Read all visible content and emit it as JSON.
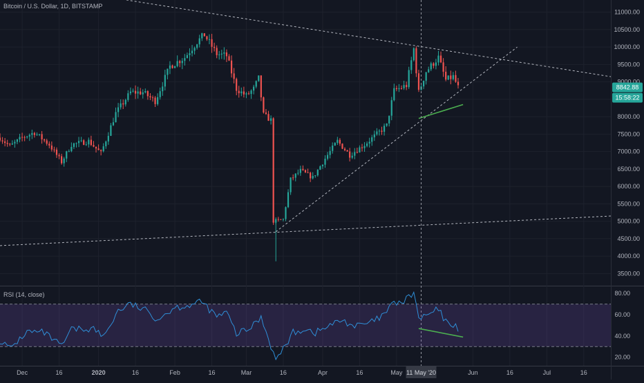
{
  "header": {
    "title": "Bitcoin / U.S. Dollar, 1D, BITSTAMP"
  },
  "rsi_panel": {
    "title": "RSI (14, close)"
  },
  "price_badge": {
    "price": "8842.88",
    "countdown": "15:58:22"
  },
  "crosshair": {
    "date_label": "11 May '20"
  },
  "colors": {
    "background": "#131722",
    "up": "#26a69a",
    "down": "#ef5350",
    "rsi_line": "#2f8fd8",
    "rsi_band": "#7e57c2",
    "trendline": "#d1d4dc",
    "divergence": "#4caf50",
    "badge_price": "#26a69a",
    "badge_time": "#26a69a"
  },
  "chart_data": [
    {
      "type": "candlestick",
      "title": "Bitcoin / U.S. Dollar, 1D, BITSTAMP",
      "y_ticks": [
        3500,
        4000,
        4500,
        5000,
        5500,
        6000,
        6500,
        7000,
        7500,
        8000,
        8500,
        9000,
        9500,
        10000,
        10500,
        11000
      ],
      "y_tick_labels": [
        "3500.00",
        "4000.00",
        "4500.00",
        "5000.00",
        "5500.00",
        "6000.00",
        "6500.00",
        "7000.00",
        "7500.00",
        "8000.00",
        "8500.00",
        "9000.00",
        "9500.00",
        "10000.00",
        "10500.00",
        "11000.00"
      ],
      "ylim": [
        3150,
        11350
      ],
      "x_tick_labels": [
        "Dec",
        "16",
        "2020",
        "16",
        "Feb",
        "16",
        "Mar",
        "16",
        "Apr",
        "16",
        "May",
        "Jun",
        "16",
        "Jul",
        "16"
      ],
      "x_tick_dates": [
        "2019-12-01",
        "2019-12-16",
        "2020-01-01",
        "2020-01-16",
        "2020-02-01",
        "2020-02-16",
        "2020-03-01",
        "2020-03-16",
        "2020-04-01",
        "2020-04-16",
        "2020-05-01",
        "2020-06-01",
        "2020-06-16",
        "2020-07-01",
        "2020-07-16"
      ],
      "x_range": [
        "2019-11-22",
        "2020-07-27"
      ],
      "last_price": 8842.88,
      "crosshair_date": "2020-05-11",
      "anchors": [
        [
          "2019-11-22",
          7400
        ],
        [
          "2019-11-26",
          7150
        ],
        [
          "2019-12-01",
          7400
        ],
        [
          "2019-12-06",
          7550
        ],
        [
          "2019-12-12",
          7200
        ],
        [
          "2019-12-17",
          6700
        ],
        [
          "2019-12-21",
          7200
        ],
        [
          "2019-12-28",
          7300
        ],
        [
          "2020-01-02",
          6950
        ],
        [
          "2020-01-08",
          8100
        ],
        [
          "2020-01-14",
          8700
        ],
        [
          "2020-01-19",
          8700
        ],
        [
          "2020-01-24",
          8450
        ],
        [
          "2020-01-30",
          9450
        ],
        [
          "2020-02-05",
          9700
        ],
        [
          "2020-02-10",
          10150
        ],
        [
          "2020-02-13",
          10350
        ],
        [
          "2020-02-18",
          9800
        ],
        [
          "2020-02-22",
          9750
        ],
        [
          "2020-02-26",
          8800
        ],
        [
          "2020-03-01",
          8600
        ],
        [
          "2020-03-04",
          8800
        ],
        [
          "2020-03-06",
          9100
        ],
        [
          "2020-03-08",
          8050
        ],
        [
          "2020-03-11",
          7900
        ],
        [
          "2020-03-12",
          5000
        ],
        [
          "2020-03-16",
          5050
        ],
        [
          "2020-03-19",
          6200
        ],
        [
          "2020-03-23",
          6450
        ],
        [
          "2020-03-28",
          6250
        ],
        [
          "2020-04-02",
          6800
        ],
        [
          "2020-04-07",
          7300
        ],
        [
          "2020-04-12",
          6900
        ],
        [
          "2020-04-18",
          7200
        ],
        [
          "2020-04-23",
          7500
        ],
        [
          "2020-04-27",
          7750
        ],
        [
          "2020-04-30",
          8750
        ],
        [
          "2020-05-05",
          8900
        ],
        [
          "2020-05-08",
          9950
        ],
        [
          "2020-05-10",
          8700
        ],
        [
          "2020-05-13",
          9300
        ],
        [
          "2020-05-18",
          9700
        ],
        [
          "2020-05-21",
          9050
        ],
        [
          "2020-05-24",
          9150
        ],
        [
          "2020-05-26",
          8842.88
        ]
      ],
      "trendlines": [
        {
          "name": "upper-resistance",
          "points": [
            [
              "2019-12-30",
              11500
            ],
            [
              "2020-07-27",
              9150
            ]
          ]
        },
        {
          "name": "lower-support",
          "points": [
            [
              "2019-11-22",
              4300
            ],
            [
              "2020-07-27",
              5150
            ]
          ]
        },
        {
          "name": "rising-support",
          "points": [
            [
              "2020-03-13",
              4700
            ],
            [
              "2020-06-19",
              10000
            ]
          ]
        }
      ],
      "divergence_line": [
        [
          "2020-05-10",
          7950
        ],
        [
          "2020-05-28",
          8350
        ]
      ]
    },
    {
      "type": "line",
      "title": "RSI (14, close)",
      "y_ticks": [
        20,
        40,
        60,
        80
      ],
      "y_tick_labels": [
        "20.00",
        "40.00",
        "60.00",
        "80.00"
      ],
      "ylim": [
        12,
        86
      ],
      "band": [
        30,
        70
      ],
      "anchors": [
        [
          "2019-11-22",
          36
        ],
        [
          "2019-11-26",
          28
        ],
        [
          "2019-12-03",
          44
        ],
        [
          "2019-12-10",
          43
        ],
        [
          "2019-12-17",
          30
        ],
        [
          "2019-12-21",
          46
        ],
        [
          "2019-12-30",
          47
        ],
        [
          "2020-01-03",
          39
        ],
        [
          "2020-01-09",
          64
        ],
        [
          "2020-01-14",
          70
        ],
        [
          "2020-01-20",
          64
        ],
        [
          "2020-01-25",
          56
        ],
        [
          "2020-02-01",
          67
        ],
        [
          "2020-02-07",
          69
        ],
        [
          "2020-02-12",
          72
        ],
        [
          "2020-02-18",
          58
        ],
        [
          "2020-02-22",
          62
        ],
        [
          "2020-02-26",
          42
        ],
        [
          "2020-03-02",
          46
        ],
        [
          "2020-03-07",
          58
        ],
        [
          "2020-03-10",
          38
        ],
        [
          "2020-03-13",
          17
        ],
        [
          "2020-03-16",
          28
        ],
        [
          "2020-03-20",
          43
        ],
        [
          "2020-03-25",
          47
        ],
        [
          "2020-03-29",
          43
        ],
        [
          "2020-04-04",
          50
        ],
        [
          "2020-04-09",
          55
        ],
        [
          "2020-04-14",
          49
        ],
        [
          "2020-04-20",
          52
        ],
        [
          "2020-04-25",
          58
        ],
        [
          "2020-04-30",
          71
        ],
        [
          "2020-05-04",
          72
        ],
        [
          "2020-05-08",
          81
        ],
        [
          "2020-05-10",
          56
        ],
        [
          "2020-05-13",
          59
        ],
        [
          "2020-05-18",
          65
        ],
        [
          "2020-05-21",
          53
        ],
        [
          "2020-05-24",
          51
        ],
        [
          "2020-05-26",
          47
        ]
      ],
      "divergence_line": [
        [
          "2020-05-10",
          47
        ],
        [
          "2020-05-28",
          39
        ]
      ]
    }
  ]
}
